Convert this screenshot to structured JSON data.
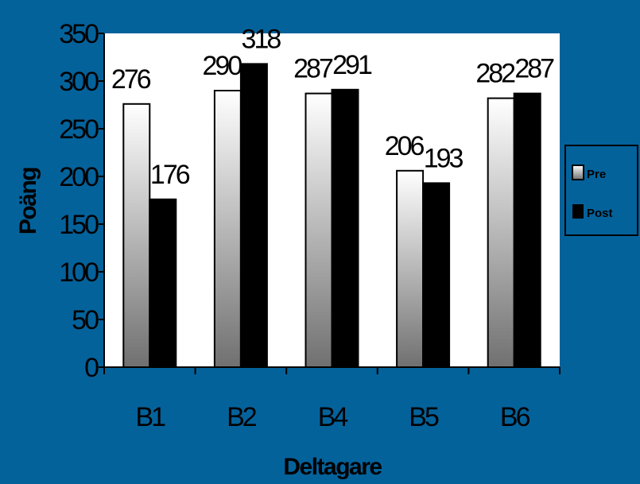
{
  "chart_data": {
    "type": "bar",
    "categories": [
      "B1",
      "B2",
      "B4",
      "B5",
      "B6"
    ],
    "series": [
      {
        "name": "Pre",
        "values": [
          276,
          290,
          287,
          206,
          282
        ]
      },
      {
        "name": "Post",
        "values": [
          176,
          318,
          291,
          193,
          287
        ]
      }
    ],
    "xlabel": "Deltagare",
    "ylabel": "Poäng",
    "ylim": [
      0,
      350
    ],
    "yticks": [
      0,
      50,
      100,
      150,
      200,
      250,
      300,
      350
    ],
    "grid": false,
    "legend": "right",
    "colors": {
      "background": "#04629b",
      "plot_area": "#ffffff",
      "pre_top": "#ffffff",
      "pre_bottom": "#707070",
      "post": "#000000"
    }
  }
}
